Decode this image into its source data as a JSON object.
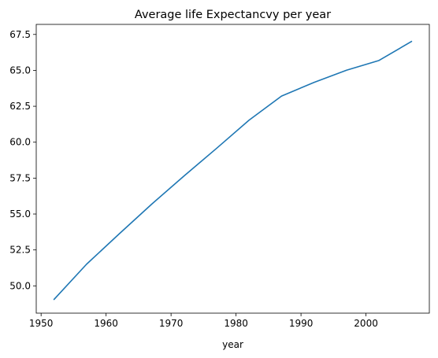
{
  "chart_data": {
    "type": "line",
    "title": "Average life Expectancvy per year",
    "xlabel": "year",
    "ylabel": "",
    "xlim": [
      1949.25,
      2009.75
    ],
    "ylim": [
      48.1,
      68.2
    ],
    "x_ticks": [
      1950,
      1960,
      1970,
      1980,
      1990,
      2000
    ],
    "y_ticks": [
      50.0,
      52.5,
      55.0,
      57.5,
      60.0,
      62.5,
      65.0,
      67.5
    ],
    "y_tick_labels": [
      "50.0",
      "52.5",
      "55.0",
      "57.5",
      "60.0",
      "62.5",
      "65.0",
      "67.5"
    ],
    "grid": false,
    "line_color": "#1f77b4",
    "series": [
      {
        "x": [
          1952,
          1957,
          1962,
          1967,
          1972,
          1977,
          1982,
          1987,
          1992,
          1997,
          2002,
          2007
        ],
        "values": [
          49.06,
          51.51,
          53.61,
          55.68,
          57.65,
          59.57,
          61.53,
          63.21,
          64.16,
          65.01,
          65.69,
          67.01
        ]
      }
    ]
  }
}
